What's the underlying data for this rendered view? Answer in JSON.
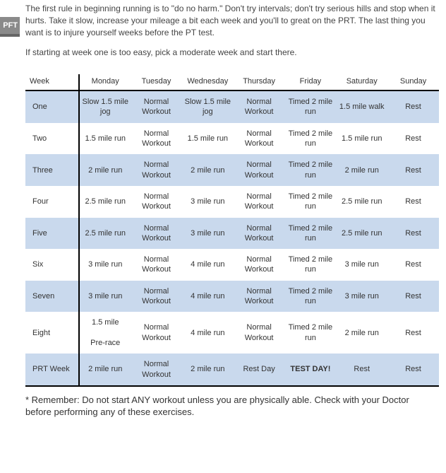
{
  "pft_label": "PFT",
  "intro_paragraph_1": "The first rule in beginning running is to \"do no harm.\" Don't try intervals; don't try serious hills and stop when it hurts. Take it slow, increase your mileage a bit each week and you'll to great on the PRT. The last thing you want is to injure yourself weeks before the PT test.",
  "intro_paragraph_2": "If starting at week one is too easy, pick a moderate week and start there.",
  "table": {
    "headers": [
      "Week",
      "Monday",
      "Tuesday",
      "Wednesday",
      "Thursday",
      "Friday",
      "Saturday",
      "Sunday"
    ],
    "rows": [
      {
        "shade": true,
        "cells": [
          "One",
          "Slow 1.5 mile jog",
          "Normal Workout",
          "Slow 1.5 mile jog",
          "Normal Workout",
          "Timed 2 mile run",
          "1.5 mile walk",
          "Rest"
        ]
      },
      {
        "shade": false,
        "cells": [
          "Two",
          "1.5 mile run",
          "Normal Workout",
          "1.5 mile run",
          "Normal Workout",
          "Timed 2 mile run",
          "1.5 mile run",
          "Rest"
        ]
      },
      {
        "shade": true,
        "cells": [
          "Three",
          "2 mile run",
          "Normal Workout",
          "2 mile run",
          "Normal Workout",
          "Timed 2 mile run",
          "2 mile run",
          "Rest"
        ]
      },
      {
        "shade": false,
        "cells": [
          "Four",
          "2.5 mile run",
          "Normal Workout",
          "3 mile run",
          "Normal Workout",
          "Timed 2 mile run",
          "2.5 mile run",
          "Rest"
        ]
      },
      {
        "shade": true,
        "cells": [
          "Five",
          "2.5  mile run",
          "Normal Workout",
          "3  mile run",
          "Normal Workout",
          "Timed 2 mile run",
          "2.5 mile run",
          "Rest"
        ]
      },
      {
        "shade": false,
        "cells": [
          "Six",
          "3 mile run",
          "Normal Workout",
          "4 mile run",
          "Normal Workout",
          "Timed 2 mile run",
          "3 mile run",
          "Rest"
        ]
      },
      {
        "shade": true,
        "cells": [
          "Seven",
          "3 mile run",
          "Normal Workout",
          "4 mile run",
          "Normal Workout",
          "Timed 2 mile run",
          "3 mile run",
          "Rest"
        ]
      },
      {
        "shade": false,
        "cells": [
          "Eight",
          "1.5 mile\n\nPre-race",
          "Normal Workout",
          "4 mile run",
          "Normal Workout",
          "Timed 2 mile run",
          "2 mile run",
          "Rest"
        ]
      },
      {
        "shade": true,
        "cells": [
          "PRT Week",
          "2 mile run",
          "Normal Workout",
          "2 mile run",
          "Rest Day",
          "TEST DAY!",
          "Rest",
          "Rest"
        ],
        "bold_cols": [
          5
        ]
      }
    ]
  },
  "footnote": "* Remember: Do not start ANY workout unless you are physically able. Check with your Doctor before performing any of these exercises."
}
